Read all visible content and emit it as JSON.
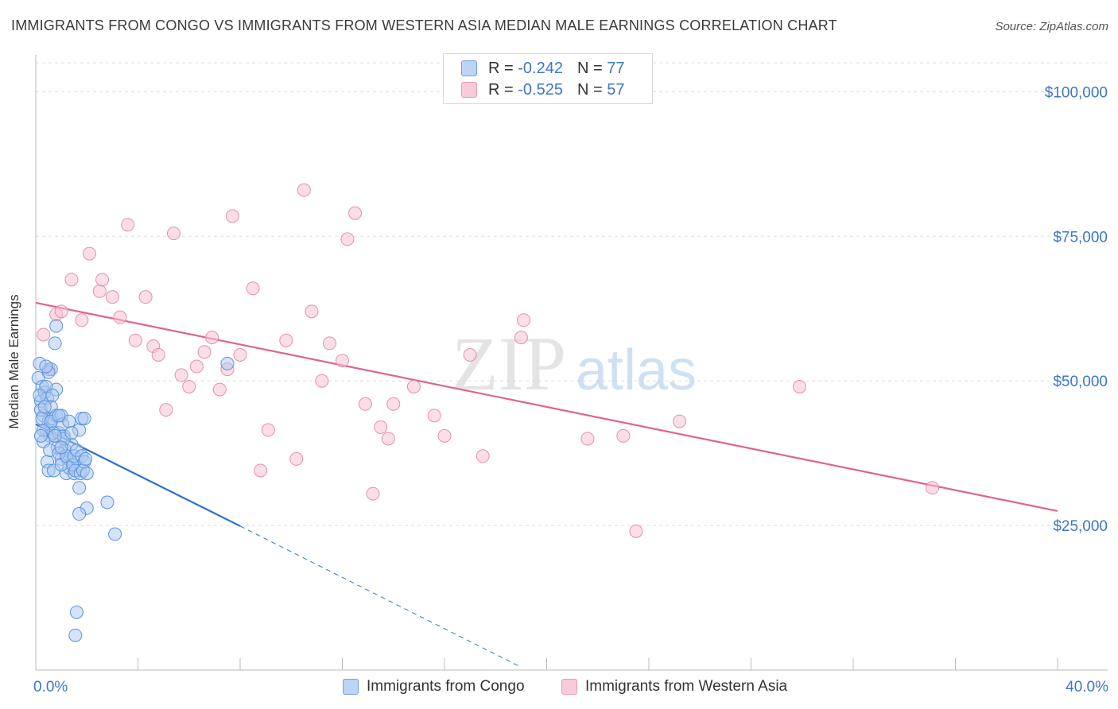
{
  "title": "IMMIGRANTS FROM CONGO VS IMMIGRANTS FROM WESTERN ASIA MEDIAN MALE EARNINGS CORRELATION CHART",
  "source": "Source: ZipAtlas.com",
  "watermark": {
    "zip": "ZIP",
    "atlas": "atlas"
  },
  "legend": {
    "r_label": "R =",
    "n_label": "N =",
    "congo": {
      "r": "-0.242",
      "n": "77"
    },
    "western_asia": {
      "r": "-0.525",
      "n": "57"
    }
  },
  "colors": {
    "congo_fill": "#a9c8f0",
    "congo_stroke": "#5b93dd",
    "congo_line": "#2f6fcf",
    "wa_fill": "#f7c2d2",
    "wa_stroke": "#e58fab",
    "wa_line": "#e0638d",
    "tick_text": "#3f76c9",
    "grid": "#dddddd"
  },
  "chart_data": {
    "type": "scatter",
    "title": "IMMIGRANTS FROM CONGO VS IMMIGRANTS FROM WESTERN ASIA MEDIAN MALE EARNINGS CORRELATION CHART",
    "xlabel": "",
    "ylabel": "Median Male Earnings",
    "xlim": [
      0,
      40
    ],
    "ylim": [
      0,
      105000
    ],
    "x_tick_labels": [
      {
        "value": 0,
        "label": "0.0%"
      },
      {
        "value": 40,
        "label": "40.0%"
      }
    ],
    "x_tick_marks": [
      0,
      4,
      8,
      12,
      16,
      20,
      24,
      28,
      32,
      36,
      40
    ],
    "y_ticks": [
      {
        "value": 25000,
        "label": "$25,000"
      },
      {
        "value": 50000,
        "label": "$50,000"
      },
      {
        "value": 75000,
        "label": "$75,000"
      },
      {
        "value": 100000,
        "label": "$100,000"
      }
    ],
    "grid": true,
    "legend_position": "bottom-center",
    "series": [
      {
        "name": "Immigrants from Congo",
        "trend": {
          "x": [
            0,
            8.0
          ],
          "y": [
            42500,
            24900
          ]
        },
        "trend_dashed": {
          "x": [
            8.0,
            19.0
          ],
          "y": [
            24900,
            500
          ]
        },
        "points": [
          [
            0.1,
            50500
          ],
          [
            0.15,
            53000
          ],
          [
            0.2,
            46500
          ],
          [
            0.25,
            49000
          ],
          [
            0.3,
            44000
          ],
          [
            0.35,
            48000
          ],
          [
            0.2,
            45000
          ],
          [
            0.4,
            41500
          ],
          [
            0.45,
            47000
          ],
          [
            0.5,
            43000
          ],
          [
            0.55,
            40500
          ],
          [
            0.6,
            45500
          ],
          [
            0.65,
            43500
          ],
          [
            0.7,
            41000
          ],
          [
            0.3,
            39500
          ],
          [
            0.8,
            44000
          ],
          [
            0.85,
            38500
          ],
          [
            0.9,
            41000
          ],
          [
            1.0,
            44000
          ],
          [
            1.0,
            36500
          ],
          [
            1.1,
            40500
          ],
          [
            1.15,
            38000
          ],
          [
            1.2,
            34000
          ],
          [
            1.25,
            36500
          ],
          [
            1.3,
            35000
          ],
          [
            1.4,
            39000
          ],
          [
            1.5,
            34000
          ],
          [
            1.6,
            36500
          ],
          [
            1.7,
            41500
          ],
          [
            1.8,
            43500
          ],
          [
            0.45,
            36000
          ],
          [
            0.5,
            34500
          ],
          [
            0.6,
            52000
          ],
          [
            0.7,
            34500
          ],
          [
            0.8,
            48500
          ],
          [
            0.75,
            56500
          ],
          [
            0.8,
            59500
          ],
          [
            0.5,
            51500
          ],
          [
            0.3,
            41500
          ],
          [
            0.25,
            43500
          ],
          [
            0.4,
            49000
          ],
          [
            0.35,
            45500
          ],
          [
            0.55,
            38000
          ],
          [
            0.65,
            47500
          ],
          [
            0.9,
            37500
          ],
          [
            1.0,
            35500
          ],
          [
            1.05,
            42500
          ],
          [
            1.1,
            40000
          ],
          [
            1.2,
            37000
          ],
          [
            1.3,
            43000
          ],
          [
            1.4,
            41000
          ],
          [
            1.45,
            35500
          ],
          [
            1.5,
            37000
          ],
          [
            1.55,
            34500
          ],
          [
            1.6,
            38000
          ],
          [
            1.7,
            31500
          ],
          [
            1.75,
            34000
          ],
          [
            1.8,
            37000
          ],
          [
            1.9,
            43500
          ],
          [
            2.0,
            28000
          ],
          [
            1.7,
            27000
          ],
          [
            2.8,
            29000
          ],
          [
            3.1,
            23500
          ],
          [
            1.55,
            6000
          ],
          [
            1.6,
            10000
          ],
          [
            1.9,
            36000
          ],
          [
            1.85,
            34500
          ],
          [
            1.95,
            36500
          ],
          [
            0.4,
            52500
          ],
          [
            0.6,
            43000
          ],
          [
            0.9,
            44000
          ],
          [
            0.2,
            40500
          ],
          [
            0.15,
            47500
          ],
          [
            0.75,
            40500
          ],
          [
            1.0,
            38500
          ],
          [
            2.0,
            34000
          ],
          [
            7.5,
            53000
          ]
        ]
      },
      {
        "name": "Immigrants from Western Asia",
        "trend": {
          "x": [
            0,
            40
          ],
          "y": [
            63500,
            27500
          ]
        },
        "points": [
          [
            0.3,
            58000
          ],
          [
            0.5,
            52000
          ],
          [
            0.8,
            61500
          ],
          [
            1.0,
            62000
          ],
          [
            1.4,
            67500
          ],
          [
            1.8,
            60500
          ],
          [
            2.1,
            72000
          ],
          [
            2.5,
            65500
          ],
          [
            2.6,
            67500
          ],
          [
            3.0,
            64500
          ],
          [
            3.3,
            61000
          ],
          [
            3.6,
            77000
          ],
          [
            3.9,
            57000
          ],
          [
            4.3,
            64500
          ],
          [
            4.6,
            56000
          ],
          [
            4.8,
            54500
          ],
          [
            5.1,
            45000
          ],
          [
            5.4,
            75500
          ],
          [
            5.7,
            51000
          ],
          [
            6.0,
            49000
          ],
          [
            6.3,
            52500
          ],
          [
            6.6,
            55000
          ],
          [
            6.9,
            57500
          ],
          [
            7.2,
            48500
          ],
          [
            7.5,
            52000
          ],
          [
            7.7,
            78500
          ],
          [
            8.0,
            54500
          ],
          [
            8.5,
            66000
          ],
          [
            8.8,
            34500
          ],
          [
            9.1,
            41500
          ],
          [
            9.8,
            57000
          ],
          [
            10.2,
            36500
          ],
          [
            10.5,
            83000
          ],
          [
            10.8,
            62000
          ],
          [
            11.2,
            50000
          ],
          [
            11.5,
            56500
          ],
          [
            12.0,
            53500
          ],
          [
            12.2,
            74500
          ],
          [
            12.5,
            79000
          ],
          [
            12.9,
            46000
          ],
          [
            13.2,
            30500
          ],
          [
            13.5,
            42000
          ],
          [
            13.8,
            40000
          ],
          [
            14.0,
            46000
          ],
          [
            14.8,
            49000
          ],
          [
            15.6,
            44000
          ],
          [
            16.0,
            40500
          ],
          [
            17.0,
            54500
          ],
          [
            17.5,
            37000
          ],
          [
            19.0,
            57500
          ],
          [
            19.1,
            60500
          ],
          [
            21.6,
            40000
          ],
          [
            23.0,
            40500
          ],
          [
            23.5,
            24000
          ],
          [
            25.2,
            43000
          ],
          [
            29.9,
            49000
          ],
          [
            35.1,
            31500
          ]
        ]
      }
    ]
  },
  "bottom_legend": {
    "congo": "Immigrants from Congo",
    "western_asia": "Immigrants from Western Asia"
  }
}
